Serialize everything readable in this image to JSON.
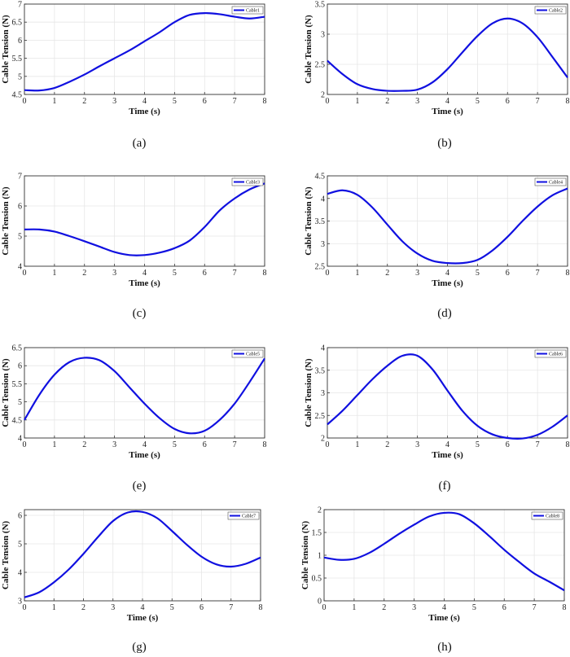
{
  "chart_data": [
    {
      "type": "line",
      "caption": "(a)",
      "xlabel": "Time (s)",
      "ylabel": "Cable Tension (N)",
      "xlim": [
        0,
        8
      ],
      "ylim": [
        4.5,
        7
      ],
      "xticks": [
        "0",
        "1",
        "2",
        "3",
        "4",
        "5",
        "6",
        "7",
        "8"
      ],
      "yticks": [
        "4.5",
        "5",
        "5.5",
        "6",
        "6.5",
        "7"
      ],
      "grid": true,
      "legend_position": "top-right",
      "series": [
        {
          "name": "Cable1",
          "color": "#1010e0",
          "x": [
            0,
            0.5,
            1,
            1.5,
            2,
            2.5,
            3,
            3.5,
            4,
            4.5,
            5,
            5.5,
            6,
            6.5,
            7,
            7.5,
            8
          ],
          "y": [
            4.62,
            4.61,
            4.68,
            4.85,
            5.05,
            5.28,
            5.5,
            5.72,
            5.97,
            6.22,
            6.5,
            6.7,
            6.75,
            6.72,
            6.65,
            6.6,
            6.65
          ]
        }
      ]
    },
    {
      "type": "line",
      "caption": "(b)",
      "xlabel": "Time (s)",
      "ylabel": "Cable Tension (N)",
      "xlim": [
        0,
        8
      ],
      "ylim": [
        2,
        3.5
      ],
      "xticks": [
        "0",
        "1",
        "2",
        "3",
        "4",
        "5",
        "6",
        "7",
        "8"
      ],
      "yticks": [
        "2",
        "2.5",
        "3",
        "3.5"
      ],
      "grid": true,
      "legend_position": "top-right",
      "series": [
        {
          "name": "Cable2",
          "color": "#1010e0",
          "x": [
            0,
            0.5,
            1,
            1.5,
            2,
            2.5,
            3,
            3.5,
            4,
            4.5,
            5,
            5.5,
            6,
            6.5,
            7,
            7.5,
            8
          ],
          "y": [
            2.56,
            2.34,
            2.17,
            2.09,
            2.06,
            2.06,
            2.08,
            2.2,
            2.42,
            2.7,
            2.97,
            3.18,
            3.26,
            3.18,
            2.95,
            2.62,
            2.28
          ]
        }
      ]
    },
    {
      "type": "line",
      "caption": "(c)",
      "xlabel": "Time (s)",
      "ylabel": "Cable Tension (N)",
      "xlim": [
        0,
        8
      ],
      "ylim": [
        4,
        7
      ],
      "xticks": [
        "0",
        "1",
        "2",
        "3",
        "4",
        "5",
        "6",
        "7",
        "8"
      ],
      "yticks": [
        "4",
        "5",
        "6",
        "7"
      ],
      "grid": true,
      "legend_position": "top-right",
      "series": [
        {
          "name": "Cable3",
          "color": "#1010e0",
          "x": [
            0,
            0.5,
            1,
            1.5,
            2,
            2.5,
            3,
            3.5,
            4,
            4.5,
            5,
            5.5,
            6,
            6.5,
            7,
            7.5,
            8
          ],
          "y": [
            5.22,
            5.22,
            5.15,
            5.0,
            4.83,
            4.65,
            4.47,
            4.37,
            4.37,
            4.45,
            4.6,
            4.85,
            5.3,
            5.85,
            6.25,
            6.55,
            6.75
          ]
        }
      ]
    },
    {
      "type": "line",
      "caption": "(d)",
      "xlabel": "Time (s)",
      "ylabel": "Cable Tension (N)",
      "xlim": [
        0,
        8
      ],
      "ylim": [
        2.5,
        4.5
      ],
      "xticks": [
        "0",
        "1",
        "2",
        "3",
        "4",
        "5",
        "6",
        "7",
        "8"
      ],
      "yticks": [
        "2.5",
        "3",
        "3.5",
        "4",
        "4.5"
      ],
      "grid": true,
      "legend_position": "top-right",
      "series": [
        {
          "name": "Cable4",
          "color": "#1010e0",
          "x": [
            0,
            0.5,
            1,
            1.5,
            2,
            2.5,
            3,
            3.5,
            4,
            4.5,
            5,
            5.5,
            6,
            6.5,
            7,
            7.5,
            8
          ],
          "y": [
            4.1,
            4.18,
            4.08,
            3.8,
            3.42,
            3.05,
            2.78,
            2.62,
            2.57,
            2.57,
            2.64,
            2.85,
            3.15,
            3.5,
            3.82,
            4.07,
            4.22
          ]
        }
      ]
    },
    {
      "type": "line",
      "caption": "(e)",
      "xlabel": "Time (s)",
      "ylabel": "Cable Tension (N)",
      "xlim": [
        0,
        8
      ],
      "ylim": [
        4,
        6.5
      ],
      "xticks": [
        "0",
        "1",
        "2",
        "3",
        "4",
        "5",
        "6",
        "7",
        "8"
      ],
      "yticks": [
        "4",
        "4.5",
        "5",
        "5.5",
        "6",
        "6.5"
      ],
      "grid": true,
      "legend_position": "top-right",
      "series": [
        {
          "name": "Cable5",
          "color": "#1010e0",
          "x": [
            0,
            0.5,
            1,
            1.5,
            2,
            2.5,
            3,
            3.5,
            4,
            4.5,
            5,
            5.5,
            6,
            6.5,
            7,
            7.5,
            8
          ],
          "y": [
            4.5,
            5.2,
            5.75,
            6.1,
            6.22,
            6.15,
            5.85,
            5.4,
            4.95,
            4.55,
            4.25,
            4.13,
            4.2,
            4.5,
            4.95,
            5.55,
            6.2
          ]
        }
      ]
    },
    {
      "type": "line",
      "caption": "(f)",
      "xlabel": "Time (s)",
      "ylabel": "Cable Tension (N)",
      "xlim": [
        0,
        8
      ],
      "ylim": [
        2,
        4
      ],
      "xticks": [
        "0",
        "1",
        "2",
        "3",
        "4",
        "5",
        "6",
        "7",
        "8"
      ],
      "yticks": [
        "2",
        "2.5",
        "3",
        "3.5",
        "4"
      ],
      "grid": true,
      "legend_position": "top-right",
      "series": [
        {
          "name": "Cable6",
          "color": "#1010e0",
          "x": [
            0,
            0.5,
            1,
            1.5,
            2,
            2.5,
            3,
            3.5,
            4,
            4.5,
            5,
            5.5,
            6,
            6.5,
            7,
            7.5,
            8
          ],
          "y": [
            2.3,
            2.6,
            2.95,
            3.3,
            3.6,
            3.82,
            3.82,
            3.52,
            3.05,
            2.6,
            2.27,
            2.08,
            2.0,
            1.99,
            2.07,
            2.25,
            2.5
          ]
        }
      ]
    },
    {
      "type": "line",
      "caption": "(g)",
      "xlabel": "Time (s)",
      "ylabel": "Cable Tension (N)",
      "xlim": [
        0,
        8
      ],
      "ylim": [
        3,
        6.2
      ],
      "xticks": [
        "0",
        "1",
        "2",
        "3",
        "4",
        "5",
        "6",
        "7",
        "8"
      ],
      "yticks": [
        "3",
        "4",
        "5",
        "6"
      ],
      "grid": true,
      "legend_position": "top-right",
      "series": [
        {
          "name": "Cable7",
          "color": "#1010e0",
          "x": [
            0,
            0.5,
            1,
            1.5,
            2,
            2.5,
            3,
            3.5,
            4,
            4.5,
            5,
            5.5,
            6,
            6.5,
            7,
            7.5,
            8
          ],
          "y": [
            3.12,
            3.3,
            3.65,
            4.1,
            4.65,
            5.25,
            5.8,
            6.1,
            6.12,
            5.9,
            5.45,
            4.97,
            4.55,
            4.28,
            4.2,
            4.3,
            4.52
          ]
        }
      ]
    },
    {
      "type": "line",
      "caption": "(h)",
      "xlabel": "Time (s)",
      "ylabel": "Cable Tension (N)",
      "xlim": [
        0,
        8
      ],
      "ylim": [
        0,
        2
      ],
      "xticks": [
        "0",
        "1",
        "2",
        "3",
        "4",
        "5",
        "6",
        "7",
        "8"
      ],
      "yticks": [
        "0",
        "0.5",
        "1",
        "1.5",
        "2"
      ],
      "grid": true,
      "legend_position": "top-right",
      "series": [
        {
          "name": "Cable8",
          "color": "#1010e0",
          "x": [
            0,
            0.5,
            1,
            1.5,
            2,
            2.5,
            3,
            3.5,
            4,
            4.5,
            5,
            5.5,
            6,
            6.5,
            7,
            7.5,
            8
          ],
          "y": [
            0.95,
            0.9,
            0.92,
            1.05,
            1.25,
            1.47,
            1.67,
            1.85,
            1.93,
            1.9,
            1.7,
            1.42,
            1.12,
            0.85,
            0.6,
            0.42,
            0.23
          ]
        }
      ]
    }
  ]
}
